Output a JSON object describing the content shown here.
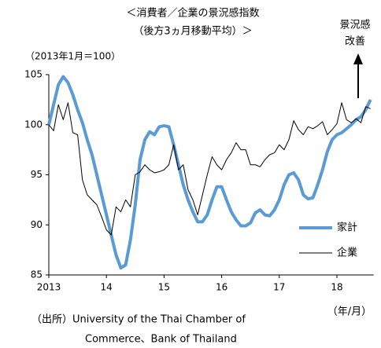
{
  "chart_data": {
    "type": "line",
    "title": [
      "＜消費者／企業の景況感指数",
      "（後方3ヵ月移動平均）＞"
    ],
    "unit_label": "（2013年1月＝100）",
    "annotation": [
      "景況感",
      "改善"
    ],
    "x_unit_label": "（年/月）",
    "source": [
      "（出所）University of the Thai Chamber of",
      "Commerce、Bank of Thailand"
    ],
    "categories": [
      "2013",
      null,
      null,
      null,
      null,
      null,
      null,
      null,
      null,
      null,
      null,
      null,
      "14",
      null,
      null,
      null,
      null,
      null,
      null,
      null,
      null,
      null,
      null,
      null,
      "15",
      null,
      null,
      null,
      null,
      null,
      null,
      null,
      null,
      null,
      null,
      null,
      "16",
      null,
      null,
      null,
      null,
      null,
      null,
      null,
      null,
      null,
      null,
      null,
      "17",
      null,
      null,
      null,
      null,
      null,
      null,
      null,
      null,
      null,
      null,
      null,
      "18",
      null,
      null,
      null,
      null,
      null,
      null,
      null
    ],
    "series": [
      {
        "name": "家計",
        "color": "#5b9bd5",
        "values": [
          100,
          102,
          104,
          104.8,
          104.2,
          103,
          101.5,
          100.2,
          98.5,
          97,
          95,
          93,
          91,
          89,
          87,
          85.7,
          86,
          88.5,
          92,
          96.5,
          98.5,
          99.3,
          99,
          99.8,
          99.9,
          99.8,
          98,
          96,
          94,
          92.5,
          91.3,
          90.3,
          90.3,
          91,
          92.5,
          93.8,
          93.8,
          92.5,
          91.3,
          90.5,
          89.9,
          89.9,
          90.2,
          91.2,
          91.5,
          91,
          90.9,
          91.5,
          92.5,
          94,
          95,
          95.2,
          94.5,
          93,
          92.6,
          92.7,
          94,
          95.5,
          97.3,
          98.5,
          99,
          99.2,
          99.6,
          100,
          100.5,
          100.8,
          101.5,
          102.5
        ]
      },
      {
        "name": "企業",
        "color": "#000000",
        "values": [
          100,
          99.4,
          102,
          100.5,
          102.2,
          99.2,
          99,
          94.5,
          93,
          92.5,
          92,
          90.8,
          89.5,
          89,
          91.8,
          91.3,
          92.5,
          91.8,
          95,
          95.3,
          96,
          95.5,
          95.2,
          95.3,
          95.5,
          96,
          98,
          95.5,
          96,
          93.5,
          92.5,
          91,
          93,
          95,
          96.8,
          96,
          95.5,
          96.5,
          97.2,
          98.2,
          97.5,
          97.5,
          96,
          96,
          95.8,
          96.5,
          97,
          97.2,
          98,
          97.5,
          98.5,
          100.4,
          99.5,
          99,
          99.8,
          99.6,
          99.9,
          100.3,
          99,
          99.5,
          100.1,
          102.2,
          100.5,
          100.2,
          100.6,
          100.2,
          101.8,
          101.6
        ]
      }
    ],
    "ylim": [
      85,
      105
    ],
    "yticks": [
      85,
      90,
      95,
      100,
      105
    ]
  }
}
